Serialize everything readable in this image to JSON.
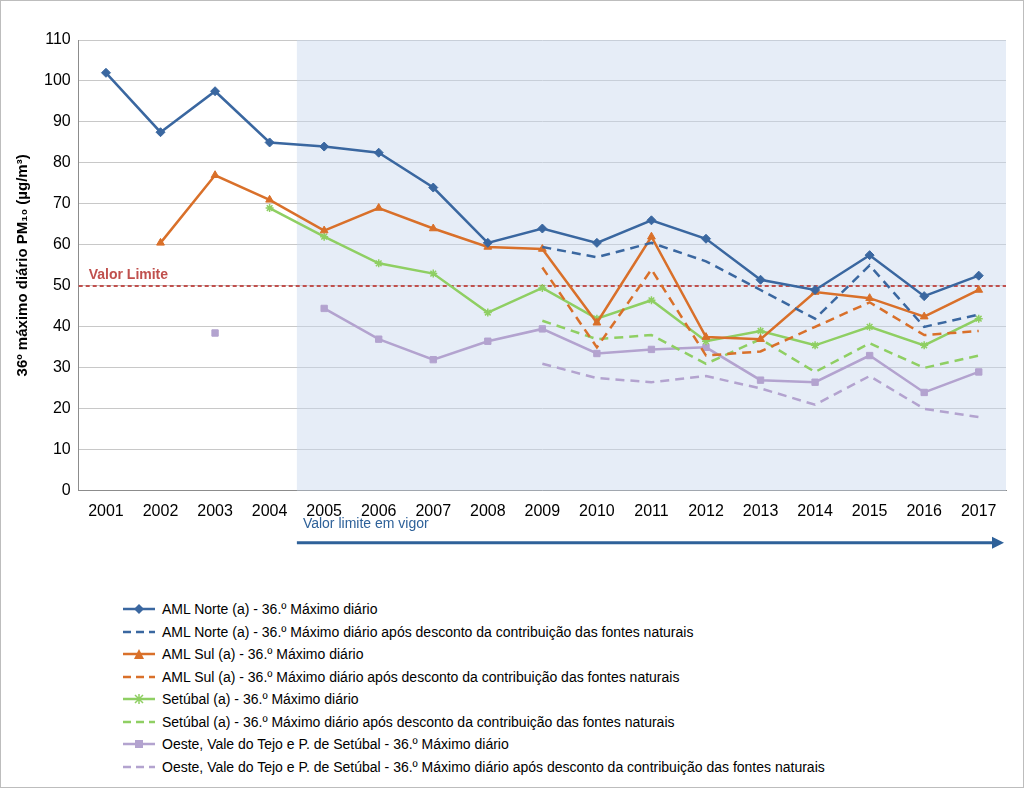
{
  "chart_data": {
    "type": "line",
    "y_label": "36º máximo diário PM₁₀ (µg/m³)",
    "categories": [
      "2001",
      "2002",
      "2003",
      "2004",
      "2005",
      "2006",
      "2007",
      "2008",
      "2009",
      "2010",
      "2011",
      "2012",
      "2013",
      "2014",
      "2015",
      "2016",
      "2017"
    ],
    "ylim": [
      0,
      110
    ],
    "yticks": [
      0,
      10,
      20,
      30,
      40,
      50,
      60,
      70,
      80,
      90,
      100,
      110
    ],
    "grid": true,
    "legend": "bottom",
    "limit_line": {
      "text": "Valor Limite",
      "value": 50,
      "color": "#c0504d",
      "line_style": "dashed"
    },
    "period_annotation": {
      "text": "Valor limite em vigor",
      "from": "2005",
      "color": "#2e6199"
    },
    "series": [
      {
        "name": "AML Norte (a) - 36.º Máximo diário",
        "color": "#3a67a0",
        "marker": "diamond",
        "line_style": "solid",
        "values": [
          102,
          87.5,
          97.5,
          85,
          84,
          82.5,
          74,
          60.5,
          64,
          60.5,
          66,
          61.5,
          51.5,
          49,
          57.5,
          47.5,
          52.5
        ]
      },
      {
        "name": "AML Norte (a) - 36.º Máximo diário após desconto da contribuição das fontes naturais",
        "color": "#3a67a0",
        "marker": "none",
        "line_style": "dashed",
        "values": [
          null,
          null,
          null,
          null,
          null,
          null,
          null,
          null,
          59.5,
          57,
          60.5,
          56,
          49,
          42,
          55,
          40,
          43
        ]
      },
      {
        "name": "AML Sul (a) - 36.º Máximo diário",
        "color": "#d9702a",
        "marker": "triangle",
        "line_style": "solid",
        "values": [
          null,
          60.5,
          77,
          71,
          63.5,
          69,
          64,
          59.5,
          59,
          41,
          62,
          37.5,
          37,
          48.5,
          47,
          42.5,
          49
        ]
      },
      {
        "name": "AML Sul (a) - 36.º Máximo diário após desconto da contribuição das fontes naturais",
        "color": "#d9702a",
        "marker": "none",
        "line_style": "dashed",
        "values": [
          null,
          null,
          null,
          null,
          null,
          null,
          null,
          null,
          54.5,
          35,
          54,
          33,
          34,
          40,
          46,
          38,
          39
        ]
      },
      {
        "name": "Setúbal (a) - 36.º Máximo diário",
        "color": "#8fcf63",
        "marker": "star",
        "line_style": "solid",
        "values": [
          null,
          null,
          null,
          69,
          62,
          55.5,
          53,
          43.5,
          49.5,
          42,
          46.5,
          36.5,
          39,
          35.5,
          40,
          35.5,
          42
        ]
      },
      {
        "name": "Setúbal (a) - 36.º Máximo diário após desconto da contribuição das fontes naturais",
        "color": "#8fcf63",
        "marker": "none",
        "line_style": "dashed",
        "values": [
          null,
          null,
          null,
          null,
          null,
          null,
          null,
          null,
          41.5,
          37,
          38,
          31,
          37,
          29,
          36,
          30,
          33
        ]
      },
      {
        "name": "Oeste, Vale do Tejo e P. de Setúbal - 36.º Máximo diário",
        "color": "#b3a3cf",
        "marker": "square",
        "line_style": "solid",
        "values": [
          null,
          null,
          38.5,
          null,
          44.5,
          37,
          32,
          36.5,
          39.5,
          33.5,
          34.5,
          35,
          27,
          26.5,
          33,
          24,
          29
        ]
      },
      {
        "name": "Oeste, Vale do Tejo e P. de Setúbal - 36.º Máximo diário após desconto da contribuição das fontes naturais",
        "color": "#b3a3cf",
        "marker": "none",
        "line_style": "dashed",
        "values": [
          null,
          null,
          null,
          null,
          null,
          null,
          null,
          null,
          31,
          27.5,
          26.5,
          28,
          25,
          21,
          28,
          20,
          18
        ]
      }
    ]
  }
}
